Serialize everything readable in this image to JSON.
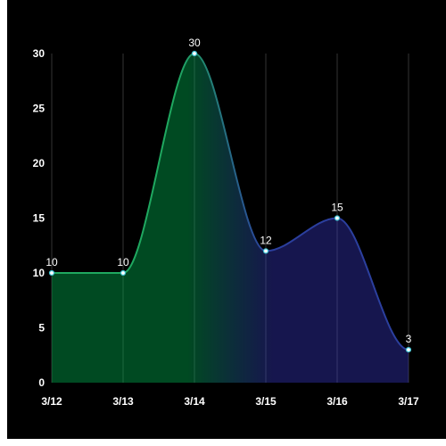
{
  "chart_data": {
    "type": "area",
    "title": "",
    "xlabel": "",
    "ylabel": "",
    "categories": [
      "3/12",
      "3/13",
      "3/14",
      "3/15",
      "3/16",
      "3/17"
    ],
    "values": [
      10,
      10,
      30,
      12,
      15,
      3
    ],
    "ylim": [
      0,
      30
    ],
    "yticks": [
      0,
      5,
      10,
      15,
      20,
      25,
      30
    ],
    "grid": "vertical",
    "legend": "none",
    "smooth": true,
    "colors": {
      "background": "#000000",
      "gradient_start": "#00b050",
      "gradient_end": "#3a3acc",
      "line_start": "#1fa860",
      "line_end": "#2b3f9e",
      "marker_fill": "#ffffff",
      "marker_stroke": "#3ec0d0",
      "grid": "#333333",
      "text": "#ffffff"
    }
  }
}
